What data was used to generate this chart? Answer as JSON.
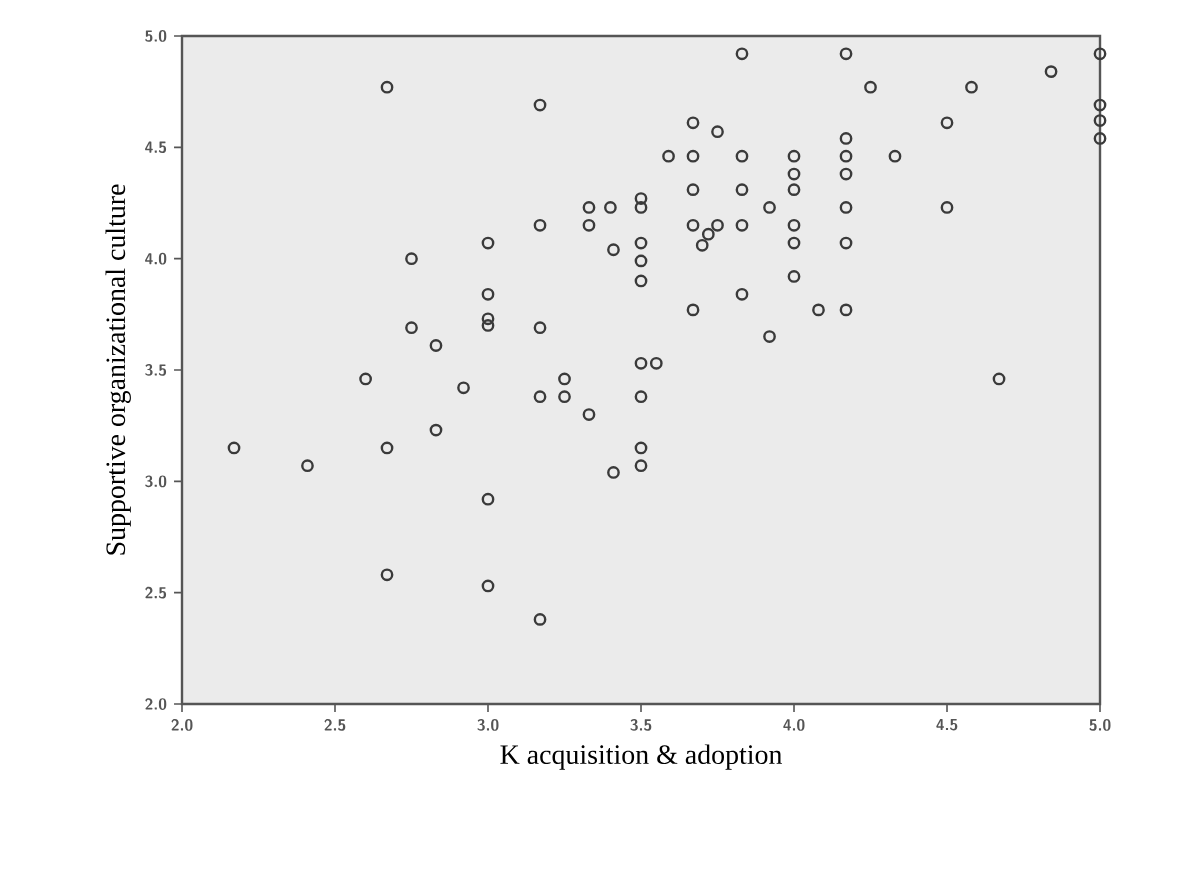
{
  "chart_data": {
    "type": "scatter",
    "xlabel": "K acquisition & adoption",
    "ylabel": "Supportive organizational culture",
    "x": [
      2.67,
      3.17,
      2.75,
      3.0,
      3.17,
      3.33,
      3.33,
      3.0,
      3.0,
      3.0,
      2.75,
      2.83,
      3.17,
      3.83,
      4.17,
      4.84,
      4.25,
      4.58,
      3.67,
      3.75,
      4.17,
      4.5,
      3.59,
      3.67,
      3.83,
      4.0,
      4.17,
      4.33,
      4.0,
      4.17,
      3.67,
      3.83,
      4.0,
      3.4,
      3.5,
      3.5,
      3.92,
      4.17,
      4.5,
      3.67,
      3.72,
      3.75,
      3.7,
      3.83,
      4.0,
      4.0,
      4.17,
      3.5,
      3.5,
      3.41,
      3.5,
      4.0,
      3.83,
      3.67,
      4.08,
      4.17,
      3.92,
      3.5,
      3.55,
      3.5,
      3.33,
      3.5,
      3.5,
      3.41,
      4.67,
      2.6,
      2.92,
      3.17,
      3.25,
      3.25,
      2.17,
      2.41,
      2.67,
      2.83,
      3.0,
      2.67,
      3.0,
      3.17,
      5.0,
      5.0,
      5.0,
      5.0
    ],
    "values": [
      4.77,
      4.69,
      4.0,
      4.07,
      4.15,
      4.23,
      4.15,
      3.84,
      3.73,
      3.7,
      3.69,
      3.61,
      3.69,
      4.92,
      4.92,
      4.84,
      4.77,
      4.77,
      4.61,
      4.57,
      4.54,
      4.61,
      4.46,
      4.46,
      4.46,
      4.46,
      4.46,
      4.46,
      4.38,
      4.38,
      4.31,
      4.31,
      4.31,
      4.23,
      4.27,
      4.23,
      4.23,
      4.23,
      4.23,
      4.15,
      4.11,
      4.15,
      4.06,
      4.15,
      4.15,
      4.07,
      4.07,
      4.07,
      3.99,
      4.04,
      3.9,
      3.92,
      3.84,
      3.77,
      3.77,
      3.77,
      3.65,
      3.53,
      3.53,
      3.38,
      3.3,
      3.15,
      3.07,
      3.04,
      3.46,
      3.46,
      3.42,
      3.38,
      3.38,
      3.46,
      3.15,
      3.07,
      3.15,
      3.23,
      2.92,
      2.58,
      2.53,
      2.38,
      4.92,
      4.69,
      4.62,
      4.54
    ],
    "color": "#3a3a3a",
    "marker": "circle",
    "xlim": [
      2,
      5
    ],
    "ylim": [
      2,
      5
    ],
    "xticks": [
      {
        "value": 2,
        "label": "2.0"
      },
      {
        "value": 2.5,
        "label": "2.5"
      },
      {
        "value": 3,
        "label": "3.0"
      },
      {
        "value": 3.5,
        "label": "3.5"
      },
      {
        "value": 4,
        "label": "4.0"
      },
      {
        "value": 4.5,
        "label": "4.5"
      },
      {
        "value": 5,
        "label": "5.0"
      }
    ],
    "yticks": [
      {
        "value": 2,
        "label": "2.0"
      },
      {
        "value": 2.5,
        "label": "2.5"
      },
      {
        "value": 3,
        "label": "3.0"
      },
      {
        "value": 3.5,
        "label": "3.5"
      },
      {
        "value": 4,
        "label": "4.0"
      },
      {
        "value": 4.5,
        "label": "4.5"
      },
      {
        "value": 5,
        "label": "5.0"
      }
    ]
  }
}
